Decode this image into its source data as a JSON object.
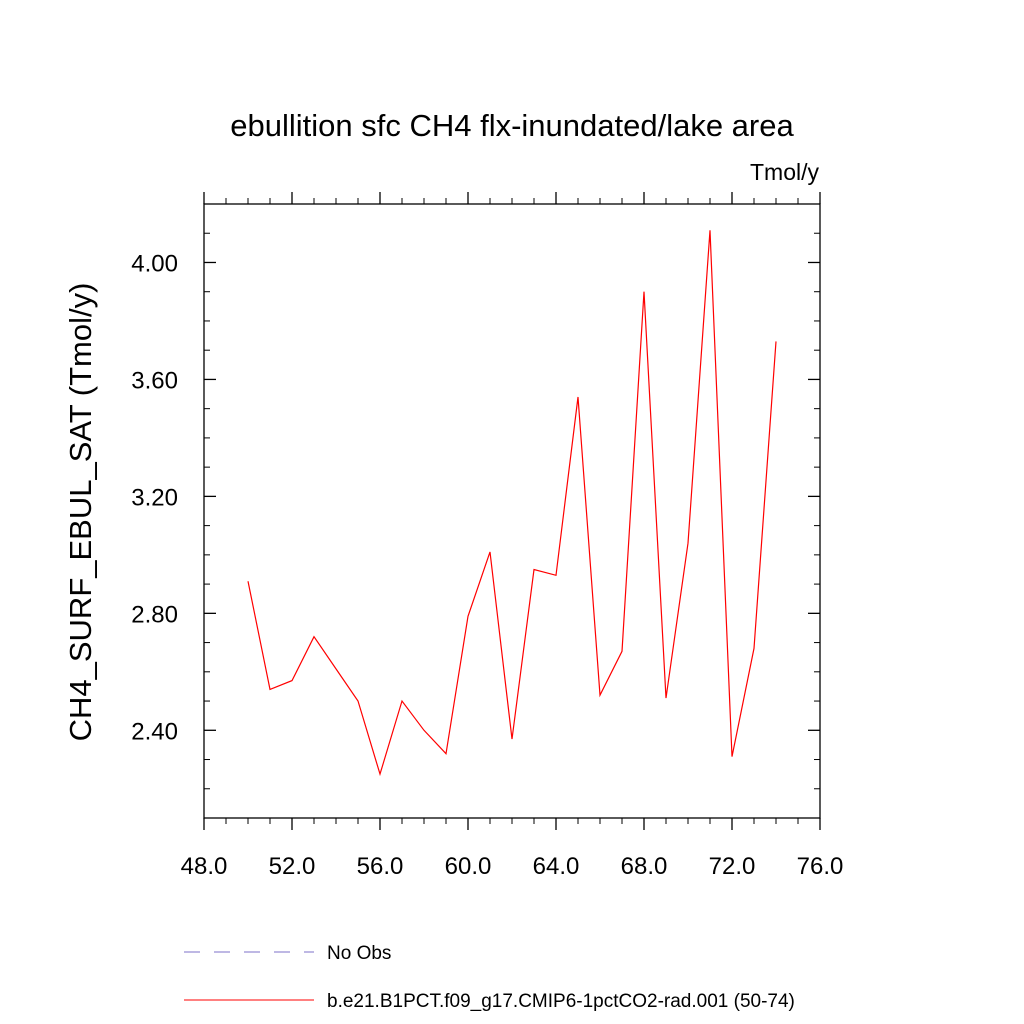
{
  "chart_data": {
    "type": "line",
    "title": "ebullition sfc CH4 flx-inundated/lake area",
    "units_label": "Tmol/y",
    "ylabel": "CH4_SURF_EBUL_SAT  (Tmol/y)",
    "xlabel": "",
    "xlim": [
      48,
      76
    ],
    "ylim": [
      2.1,
      4.2
    ],
    "xticks": [
      48,
      52,
      56,
      60,
      64,
      68,
      72,
      76
    ],
    "xtick_labels": [
      "48.0",
      "52.0",
      "56.0",
      "60.0",
      "64.0",
      "68.0",
      "72.0",
      "76.0"
    ],
    "yticks": [
      2.4,
      2.8,
      3.2,
      3.6,
      4.0
    ],
    "ytick_labels": [
      "2.40",
      "2.80",
      "3.20",
      "3.60",
      "4.00"
    ],
    "x_minor_step": 1,
    "y_minor_step": 0.1,
    "grid": false,
    "legend_position": "bottom",
    "series": [
      {
        "name": "b.e21.B1PCT.f09_g17.CMIP6-1pctCO2-rad.001 (50-74)",
        "color": "#ff0000",
        "style": "solid",
        "x": [
          50,
          51,
          52,
          53,
          54,
          55,
          56,
          57,
          58,
          59,
          60,
          61,
          62,
          63,
          64,
          65,
          66,
          67,
          68,
          69,
          70,
          71,
          72,
          73,
          74
        ],
        "values": [
          2.91,
          2.54,
          2.57,
          2.72,
          2.61,
          2.5,
          2.25,
          2.5,
          2.4,
          2.32,
          2.79,
          3.01,
          2.37,
          2.95,
          2.93,
          3.54,
          2.52,
          2.67,
          3.9,
          2.51,
          3.04,
          4.11,
          2.31,
          2.68,
          3.73
        ]
      }
    ],
    "legend": [
      {
        "label": "No Obs",
        "color": "#7d70c8",
        "style": "dashed"
      },
      {
        "label": "b.e21.B1PCT.f09_g17.CMIP6-1pctCO2-rad.001 (50-74)",
        "color": "#ff0000",
        "style": "solid"
      }
    ]
  }
}
